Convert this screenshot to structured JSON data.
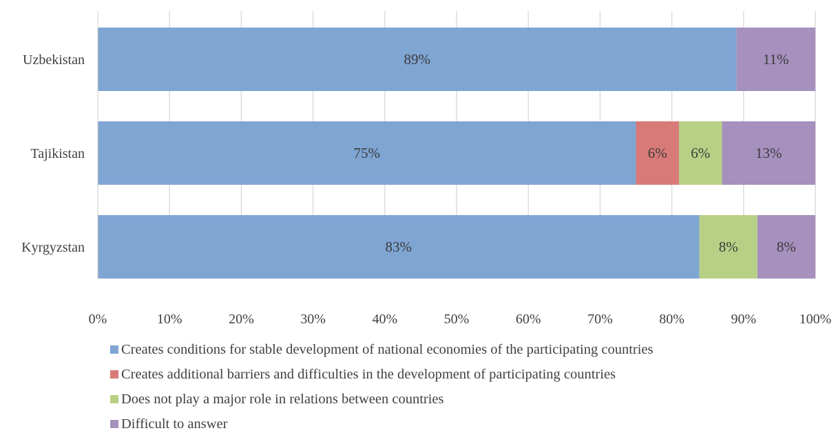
{
  "chart_data": {
    "type": "bar",
    "orientation": "horizontal",
    "stacked": true,
    "title": "",
    "xlabel": "",
    "ylabel": "",
    "categories": [
      "Uzbekistan",
      "Tajikistan",
      "Kyrgyzstan"
    ],
    "series": [
      {
        "name": "Creates conditions for stable development of national economies of the participating countries",
        "color": "#7fa5d3",
        "values": [
          89,
          75,
          83
        ],
        "labels": [
          "89%",
          "75%",
          "83%"
        ]
      },
      {
        "name": "Creates additional barriers and difficulties in the development of participating countries",
        "color": "#d87b78",
        "values": [
          0,
          6,
          0
        ],
        "labels": [
          "",
          "6%",
          ""
        ]
      },
      {
        "name": "Does not play a major role in relations between countries",
        "color": "#b8d086",
        "values": [
          0,
          6,
          8
        ],
        "labels": [
          "",
          "6%",
          "8%"
        ]
      },
      {
        "name": "Difficult to answer",
        "color": "#a690be",
        "values": [
          11,
          13,
          8
        ],
        "labels": [
          "11%",
          "13%",
          "8%"
        ]
      }
    ],
    "xlim": [
      0,
      100
    ],
    "x_ticks": [
      "0%",
      "10%",
      "20%",
      "30%",
      "40%",
      "50%",
      "60%",
      "70%",
      "80%",
      "90%",
      "100%"
    ],
    "grid": "vertical",
    "legend_position": "bottom"
  }
}
